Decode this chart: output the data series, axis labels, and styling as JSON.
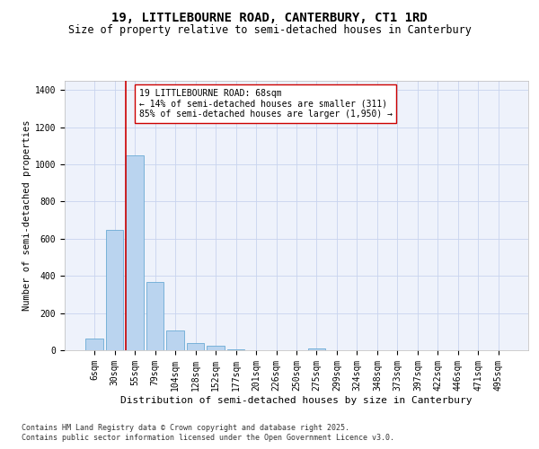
{
  "title1": "19, LITTLEBOURNE ROAD, CANTERBURY, CT1 1RD",
  "title2": "Size of property relative to semi-detached houses in Canterbury",
  "xlabel": "Distribution of semi-detached houses by size in Canterbury",
  "ylabel": "Number of semi-detached properties",
  "bar_labels": [
    "6sqm",
    "30sqm",
    "55sqm",
    "79sqm",
    "104sqm",
    "128sqm",
    "152sqm",
    "177sqm",
    "201sqm",
    "226sqm",
    "250sqm",
    "275sqm",
    "299sqm",
    "324sqm",
    "348sqm",
    "373sqm",
    "397sqm",
    "422sqm",
    "446sqm",
    "471sqm",
    "495sqm"
  ],
  "bar_values": [
    65,
    650,
    1050,
    365,
    105,
    38,
    22,
    5,
    0,
    0,
    0,
    10,
    0,
    0,
    0,
    0,
    0,
    0,
    0,
    0,
    0
  ],
  "bar_color": "#bad4ef",
  "bar_edge_color": "#6aaad4",
  "property_size": "68sqm",
  "annotation_text": "19 LITTLEBOURNE ROAD: 68sqm\n← 14% of semi-detached houses are smaller (311)\n85% of semi-detached houses are larger (1,950) →",
  "ylim": [
    0,
    1450
  ],
  "yticks": [
    0,
    200,
    400,
    600,
    800,
    1000,
    1200,
    1400
  ],
  "footnote1": "Contains HM Land Registry data © Crown copyright and database right 2025.",
  "footnote2": "Contains public sector information licensed under the Open Government Licence v3.0.",
  "bg_color": "#eef2fb",
  "grid_color": "#c8d4ee",
  "line_color": "#cc0000",
  "box_edge_color": "#cc0000",
  "title1_fontsize": 10,
  "title2_fontsize": 8.5,
  "annotation_fontsize": 7,
  "axis_fontsize": 7,
  "ylabel_fontsize": 7.5,
  "xlabel_fontsize": 8,
  "footnote_fontsize": 6
}
